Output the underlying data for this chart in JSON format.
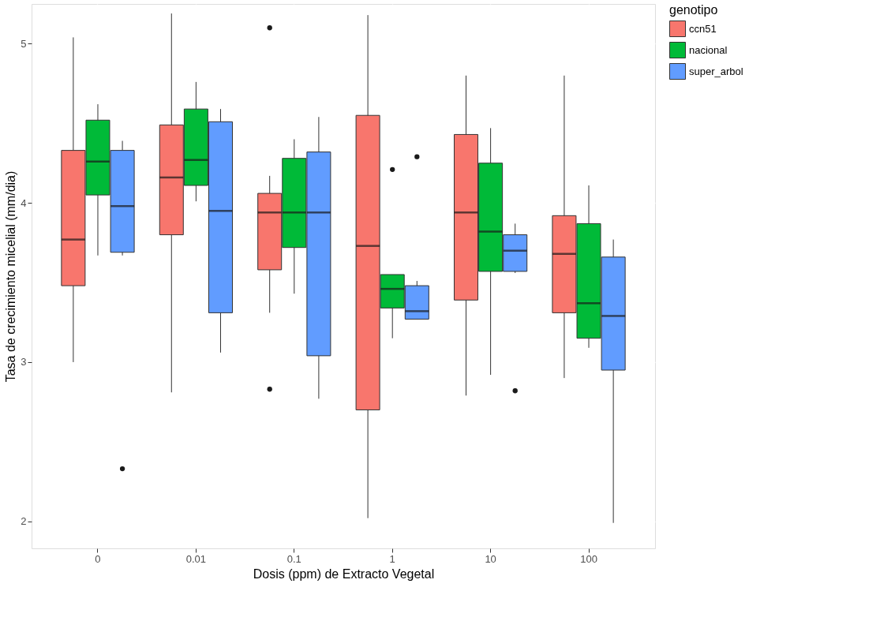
{
  "chart_data": {
    "type": "box",
    "xlabel": "Dosis (ppm) de Extracto Vegetal",
    "ylabel": "Tasa de crecimiento micelial (mm/dia)",
    "legend_title": "genotipo",
    "legend": "right",
    "grid": true,
    "categories": [
      "0",
      "0.01",
      "0.1",
      "1",
      "10",
      "100"
    ],
    "ylim": [
      1.83,
      5.25
    ],
    "yticks": [
      2,
      3,
      4,
      5
    ],
    "series": [
      {
        "name": "ccn51",
        "color": "#f8766d",
        "boxes": [
          {
            "low": 3.0,
            "q1": 3.48,
            "median": 3.77,
            "q3": 4.33,
            "high": 5.04
          },
          {
            "low": 2.81,
            "q1": 3.8,
            "median": 4.16,
            "q3": 4.49,
            "high": 5.19
          },
          {
            "low": 3.31,
            "q1": 3.58,
            "median": 3.94,
            "q3": 4.06,
            "high": 4.17,
            "outliers": [
              5.1,
              2.83
            ]
          },
          {
            "low": 2.02,
            "q1": 2.7,
            "median": 3.73,
            "q3": 4.55,
            "high": 5.18
          },
          {
            "low": 2.79,
            "q1": 3.39,
            "median": 3.94,
            "q3": 4.43,
            "high": 4.8
          },
          {
            "low": 2.9,
            "q1": 3.31,
            "median": 3.68,
            "q3": 3.92,
            "high": 4.8
          }
        ]
      },
      {
        "name": "nacional",
        "color": "#00ba38",
        "boxes": [
          {
            "low": 3.67,
            "q1": 4.05,
            "median": 4.26,
            "q3": 4.52,
            "high": 4.62
          },
          {
            "low": 4.01,
            "q1": 4.11,
            "median": 4.27,
            "q3": 4.59,
            "high": 4.76
          },
          {
            "low": 3.43,
            "q1": 3.72,
            "median": 3.94,
            "q3": 4.28,
            "high": 4.4
          },
          {
            "low": 3.15,
            "q1": 3.34,
            "median": 3.46,
            "q3": 3.55,
            "high": 3.55,
            "outliers": [
              4.21
            ]
          },
          {
            "low": 2.92,
            "q1": 3.57,
            "median": 3.82,
            "q3": 4.25,
            "high": 4.47
          },
          {
            "low": 3.09,
            "q1": 3.15,
            "median": 3.37,
            "q3": 3.87,
            "high": 4.11
          }
        ]
      },
      {
        "name": "super_arbol",
        "color": "#619cff",
        "boxes": [
          {
            "low": 3.67,
            "q1": 3.69,
            "median": 3.98,
            "q3": 4.33,
            "high": 4.39,
            "outliers": [
              2.33
            ]
          },
          {
            "low": 3.06,
            "q1": 3.31,
            "median": 3.95,
            "q3": 4.51,
            "high": 4.59
          },
          {
            "low": 2.77,
            "q1": 3.04,
            "median": 3.94,
            "q3": 4.32,
            "high": 4.54
          },
          {
            "low": 3.27,
            "q1": 3.27,
            "median": 3.32,
            "q3": 3.48,
            "high": 3.51,
            "outliers": [
              4.29
            ]
          },
          {
            "low": 3.56,
            "q1": 3.57,
            "median": 3.7,
            "q3": 3.8,
            "high": 3.87,
            "outliers": [
              2.82
            ]
          },
          {
            "low": 1.99,
            "q1": 2.95,
            "median": 3.29,
            "q3": 3.66,
            "high": 3.77
          }
        ]
      }
    ]
  }
}
